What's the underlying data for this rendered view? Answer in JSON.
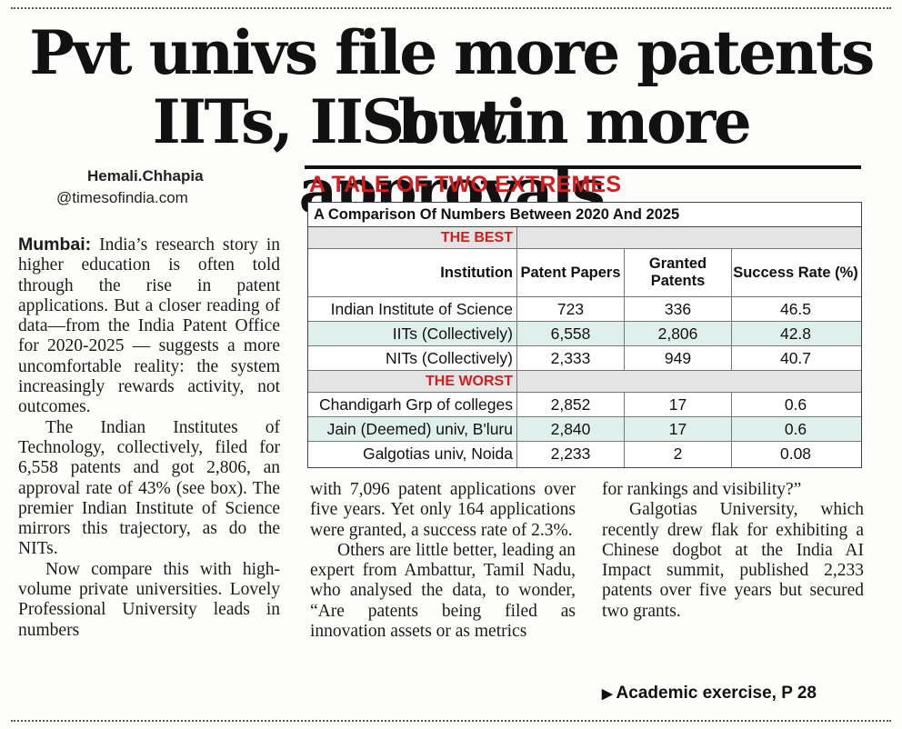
{
  "headline": {
    "line1": "Pvt univs file more patents but",
    "line2": "IITs, IISc win more approvals"
  },
  "byline": {
    "author": "Hemali.Chhapia",
    "handle": "@timesofindia.com"
  },
  "article": {
    "dateline": "Mumbai:",
    "col1": {
      "p1": "India’s research story in higher education is often told through the rise in patent applications. But a closer reading of data—from the India Patent Office for 2020-2025 — suggests a more uncomfortable reality: the system increasingly rewards activity, not outcomes.",
      "p2": "The Indian Institutes of Technology, collectively, filed for 6,558 patents and got 2,806, an approval rate of 43% (see box). The premier Indian Institute of Science mirrors this trajectory, as do the NITs.",
      "p3": "Now compare this with high-volume private universities. Lovely Professional University leads in numbers"
    },
    "col2": {
      "p1": "with 7,096 patent applications over five years. Yet only 164 applications were granted, a success rate of 2.3%.",
      "p2": "Others are little better, leading an expert from Ambattur, Tamil Nadu, who analysed the data, to wonder, “Are patents being filed as innovation assets or as metrics"
    },
    "col3": {
      "p1": "for rankings and visibility?”",
      "p2": "Galgotias University, which recently drew flak for exhibiting a Chinese dogbot at the India AI Impact summit, published 2,233 patents over five years but secured two grants."
    },
    "see_ref": "Academic exercise, P 28"
  },
  "box": {
    "title": "A TALE OF TWO EXTREMES",
    "subtitle": "A Comparison Of Numbers Between 2020 And 2025",
    "best_label": "THE BEST",
    "worst_label": "THE WORST",
    "columns": {
      "institution": "Institution",
      "patent_papers": "Patent Papers",
      "granted_patents": "Granted Patents",
      "success_rate": "Success Rate (%)"
    },
    "best_rows": [
      {
        "institution": "Indian Institute of Science",
        "papers": "723",
        "granted": "336",
        "rate": "46.5"
      },
      {
        "institution": "IITs (Collectively)",
        "papers": "6,558",
        "granted": "2,806",
        "rate": "42.8"
      },
      {
        "institution": "NITs (Collectively)",
        "papers": "2,333",
        "granted": "949",
        "rate": "40.7"
      }
    ],
    "worst_rows": [
      {
        "institution": "Chandigarh Grp of colleges",
        "papers": "2,852",
        "granted": "17",
        "rate": "0.6"
      },
      {
        "institution": "Jain (Deemed) univ, B'luru",
        "papers": "2,840",
        "granted": "17",
        "rate": "0.6"
      },
      {
        "institution": "Galgotias univ, Noida",
        "papers": "2,233",
        "granted": "2",
        "rate": "0.08"
      }
    ],
    "colors": {
      "accent_red": "#d51c1f",
      "highlight_row": "#dff0ec",
      "section_gray": "#e4e4e4"
    }
  }
}
